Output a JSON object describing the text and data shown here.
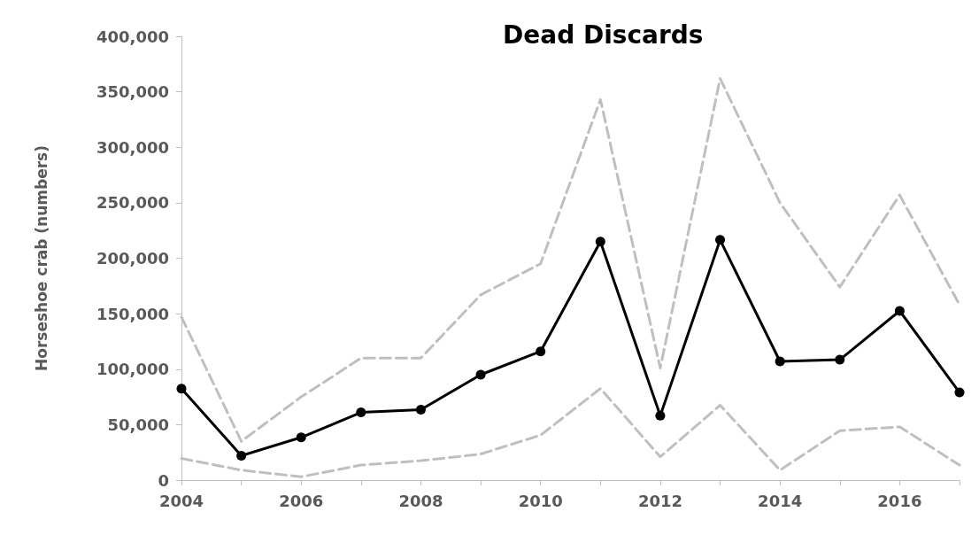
{
  "chart_data": {
    "type": "line",
    "title": "Dead Discards",
    "ylabel": "Horseshoe crab (numbers)",
    "x": [
      2004,
      2005,
      2006,
      2007,
      2008,
      2009,
      2010,
      2011,
      2012,
      2013,
      2014,
      2015,
      2016,
      2017
    ],
    "xlim": [
      2004,
      2017
    ],
    "xticks": [
      2004,
      {
        "value": 2005,
        "label": null
      },
      2006,
      {
        "value": 2007,
        "label": null
      },
      2008,
      {
        "value": 2009,
        "label": null
      },
      2010,
      {
        "value": 2011,
        "label": null
      },
      2012,
      {
        "value": 2013,
        "label": null
      },
      2014,
      {
        "value": 2015,
        "label": null
      },
      2016,
      {
        "value": 2017,
        "label": null
      }
    ],
    "ylim": [
      0,
      400000
    ],
    "yticks": [
      0,
      {
        "value": 50000,
        "label": "50,000"
      },
      {
        "value": 100000,
        "label": "100,000"
      },
      {
        "value": 150000,
        "label": "150,000"
      },
      {
        "value": 200000,
        "label": "200,000"
      },
      {
        "value": 250000,
        "label": "250,000"
      },
      {
        "value": 300000,
        "label": "300,000"
      },
      {
        "value": 350000,
        "label": "350,000"
      },
      {
        "value": 400000,
        "label": "400,000"
      }
    ],
    "grid": false,
    "series": [
      {
        "color": "#bfbfbf",
        "marker": "none",
        "line_style": "dashed",
        "values": [
          147000,
          35000,
          75000,
          110000,
          110000,
          167000,
          195000,
          343000,
          101000,
          362000,
          250000,
          174000,
          257000,
          158000
        ]
      },
      {
        "color": "#bfbfbf",
        "marker": "none",
        "line_style": "dashed",
        "values": [
          19500,
          9000,
          3000,
          13500,
          17500,
          23500,
          40500,
          82500,
          21000,
          67500,
          9000,
          44500,
          48000,
          13500
        ]
      },
      {
        "color": "#000000",
        "marker": "circle",
        "line_style": "solid",
        "values": [
          82500,
          22000,
          38500,
          61000,
          63500,
          95000,
          116000,
          215000,
          58000,
          216500,
          107000,
          108500,
          152500,
          79000
        ]
      }
    ]
  }
}
